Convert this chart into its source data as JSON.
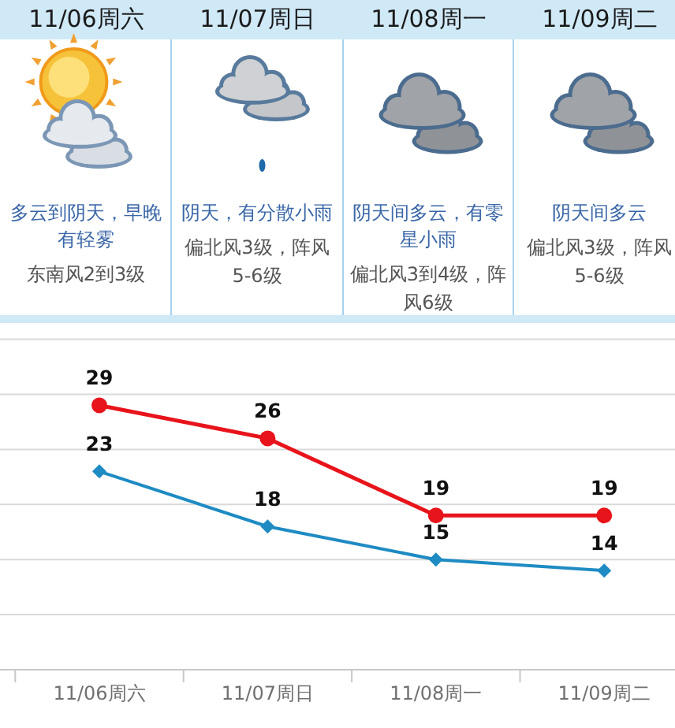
{
  "chart_data": [
    {
      "type": "other",
      "categories": [
        "11/06周六",
        "11/07周日",
        "11/08周一",
        "11/09周二"
      ],
      "annotations": [
        "多云到阴天，早晚有轻雾",
        "东南风2到3级",
        "阴天，有分散小雨",
        "偏北风3级，阵风5-6级",
        "阴天间多云，有零星小雨",
        "偏北风3到4级，阵风6级",
        "阴天间多云",
        "偏北风3级，阵风5-6级"
      ]
    },
    {
      "type": "line",
      "categories": [
        "11/06周六",
        "11/07周日",
        "11/08周一",
        "11/09周二"
      ],
      "series": [
        {
          "color": "#e8141b",
          "marker": "circle",
          "values": [
            29,
            26,
            19,
            19
          ]
        },
        {
          "color": "#1e8bc3",
          "marker": "diamond",
          "values": [
            23,
            18,
            15,
            14
          ]
        }
      ],
      "data_labels": true,
      "ylim": [
        5,
        35
      ],
      "yticks": [
        {
          "value": 5,
          "label": null
        },
        {
          "value": 10,
          "label": null
        },
        {
          "value": 15,
          "label": null
        },
        {
          "value": 20,
          "label": null
        },
        {
          "value": 25,
          "label": null
        },
        {
          "value": 30,
          "label": null
        },
        {
          "value": 35,
          "label": null
        }
      ],
      "grid": "y",
      "tick_labels": "x"
    }
  ]
}
